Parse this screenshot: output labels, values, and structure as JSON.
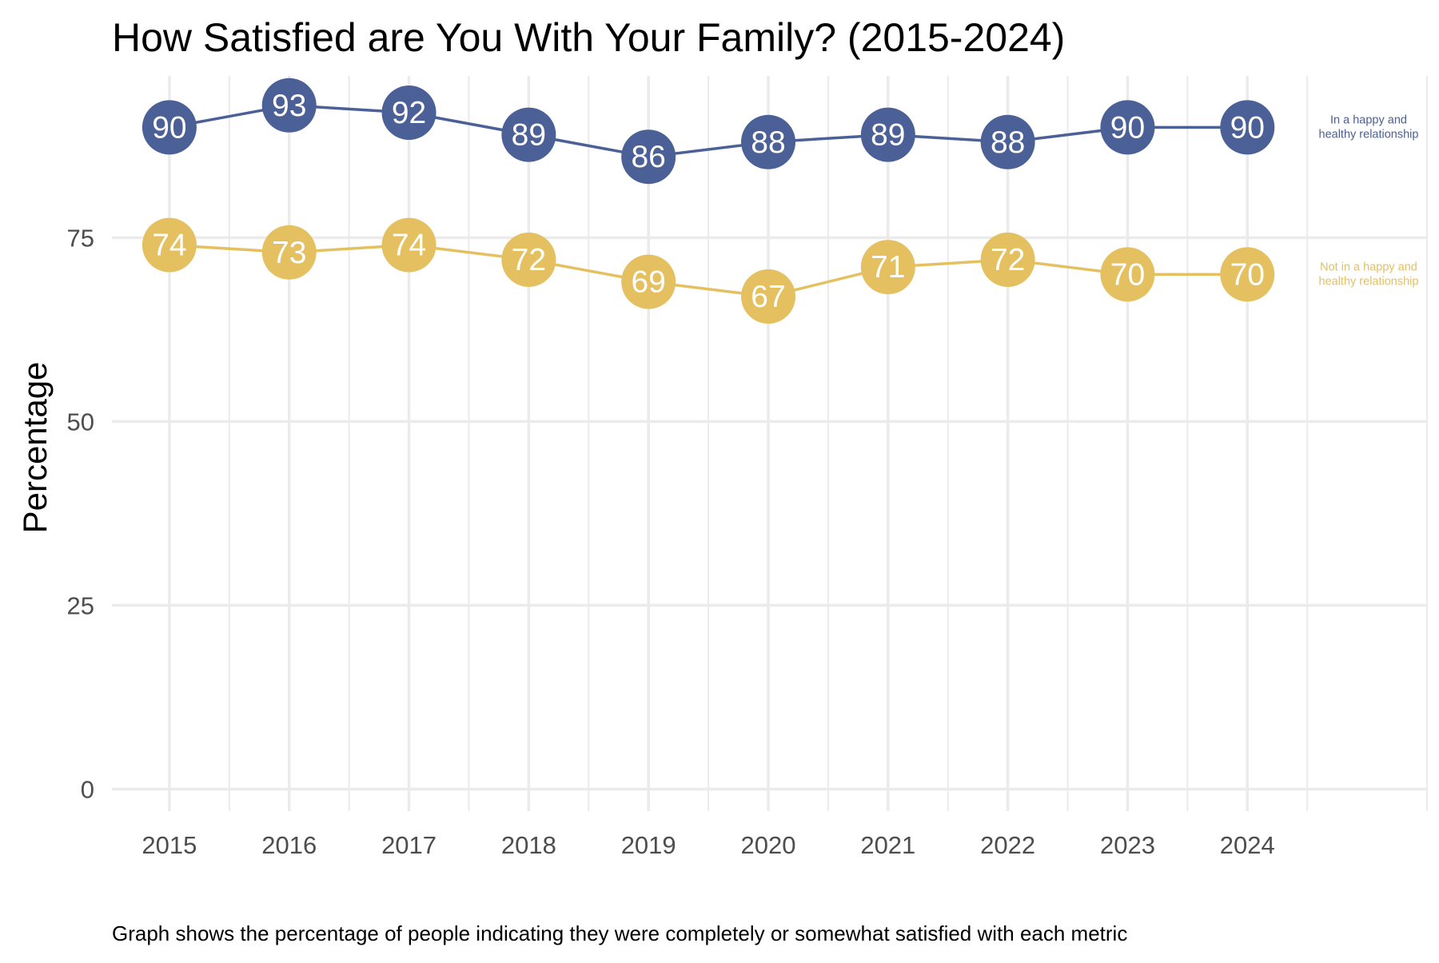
{
  "chart_data": {
    "type": "line",
    "title": "How Satisfied are You With Your Family? (2015-2024)",
    "ylabel": "Percentage",
    "xlabel": "",
    "caption": "Graph shows the percentage of people indicating they were completely or somewhat satisfied with each metric",
    "x": [
      2015,
      2016,
      2017,
      2018,
      2019,
      2020,
      2021,
      2022,
      2023,
      2024
    ],
    "x_tick_labels": [
      "2015",
      "2016",
      "2017",
      "2018",
      "2019",
      "2020",
      "2021",
      "2022",
      "2023",
      "2024"
    ],
    "y_ticks": [
      0,
      25,
      50,
      75
    ],
    "y_tick_labels": [
      "0",
      "25",
      "50",
      "75"
    ],
    "ylim": [
      -3,
      97
    ],
    "xlim": [
      2014.52,
      2025.5
    ],
    "grid": true,
    "series": [
      {
        "name": "In a happy and healthy relationship",
        "label_lines": [
          "In a happy and",
          "healthy relationship"
        ],
        "color": "#4a6096",
        "values": [
          90,
          93,
          92,
          89,
          86,
          88,
          89,
          88,
          90,
          90
        ],
        "data_labels": [
          "90",
          "93",
          "92",
          "89",
          "86",
          "88",
          "89",
          "88",
          "90",
          "90"
        ]
      },
      {
        "name": "Not in a happy and healthy relationship",
        "label_lines": [
          "Not in a happy and",
          "healthy relationship"
        ],
        "color": "#e4c061",
        "values": [
          74,
          73,
          74,
          72,
          69,
          67,
          71,
          72,
          70,
          70
        ],
        "data_labels": [
          "74",
          "73",
          "74",
          "72",
          "69",
          "67",
          "71",
          "72",
          "70",
          "70"
        ]
      }
    ]
  }
}
